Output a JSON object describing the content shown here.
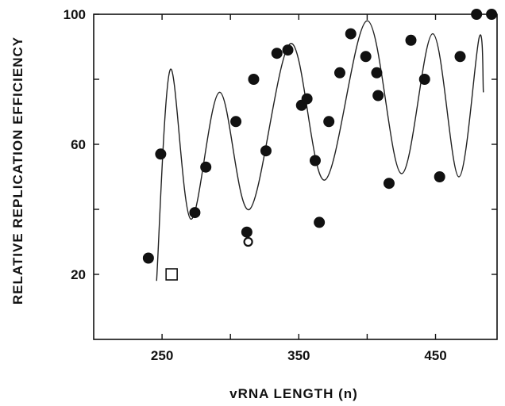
{
  "chart_data": {
    "type": "scatter",
    "xlabel": "vRNA LENGTH (n)",
    "ylabel": "RELATIVE REPLICATION EFFICIENCY",
    "xlim": [
      200,
      495
    ],
    "ylim": [
      0,
      100
    ],
    "x_ticks": [
      250,
      350,
      450
    ],
    "y_ticks": [
      20,
      60,
      100
    ],
    "x_minor_ticks": [
      300,
      400
    ],
    "y_minor_ticks": [
      40,
      80
    ],
    "grid": false,
    "series": [
      {
        "marker": "filled-circle",
        "x": [
          240,
          249,
          274,
          282,
          304,
          312,
          317,
          326,
          334,
          342,
          352,
          356,
          362,
          365,
          372,
          380,
          388,
          399,
          407,
          408,
          416,
          432,
          442,
          453,
          468,
          480,
          491
        ],
        "y": [
          25,
          57,
          39,
          53,
          67,
          33,
          80,
          58,
          88,
          89,
          72,
          74,
          55,
          36,
          67,
          82,
          94,
          87,
          82,
          75,
          48,
          92,
          80,
          50,
          87,
          100,
          100
        ]
      },
      {
        "marker": "open-circle",
        "x": [
          313
        ],
        "y": [
          30
        ]
      },
      {
        "marker": "open-square",
        "x": [
          257
        ],
        "y": [
          20
        ]
      }
    ],
    "fit_curve": {
      "type": "line",
      "x_start": 246,
      "x_end": 485,
      "sample": [
        [
          246,
          18
        ],
        [
          256,
          83
        ],
        [
          271,
          37
        ],
        [
          292,
          76
        ],
        [
          314,
          40
        ],
        [
          344,
          91
        ],
        [
          369,
          49
        ],
        [
          400,
          98
        ],
        [
          425,
          51
        ],
        [
          448,
          94
        ],
        [
          467,
          50
        ],
        [
          482,
          93
        ],
        [
          485,
          76
        ]
      ]
    }
  }
}
